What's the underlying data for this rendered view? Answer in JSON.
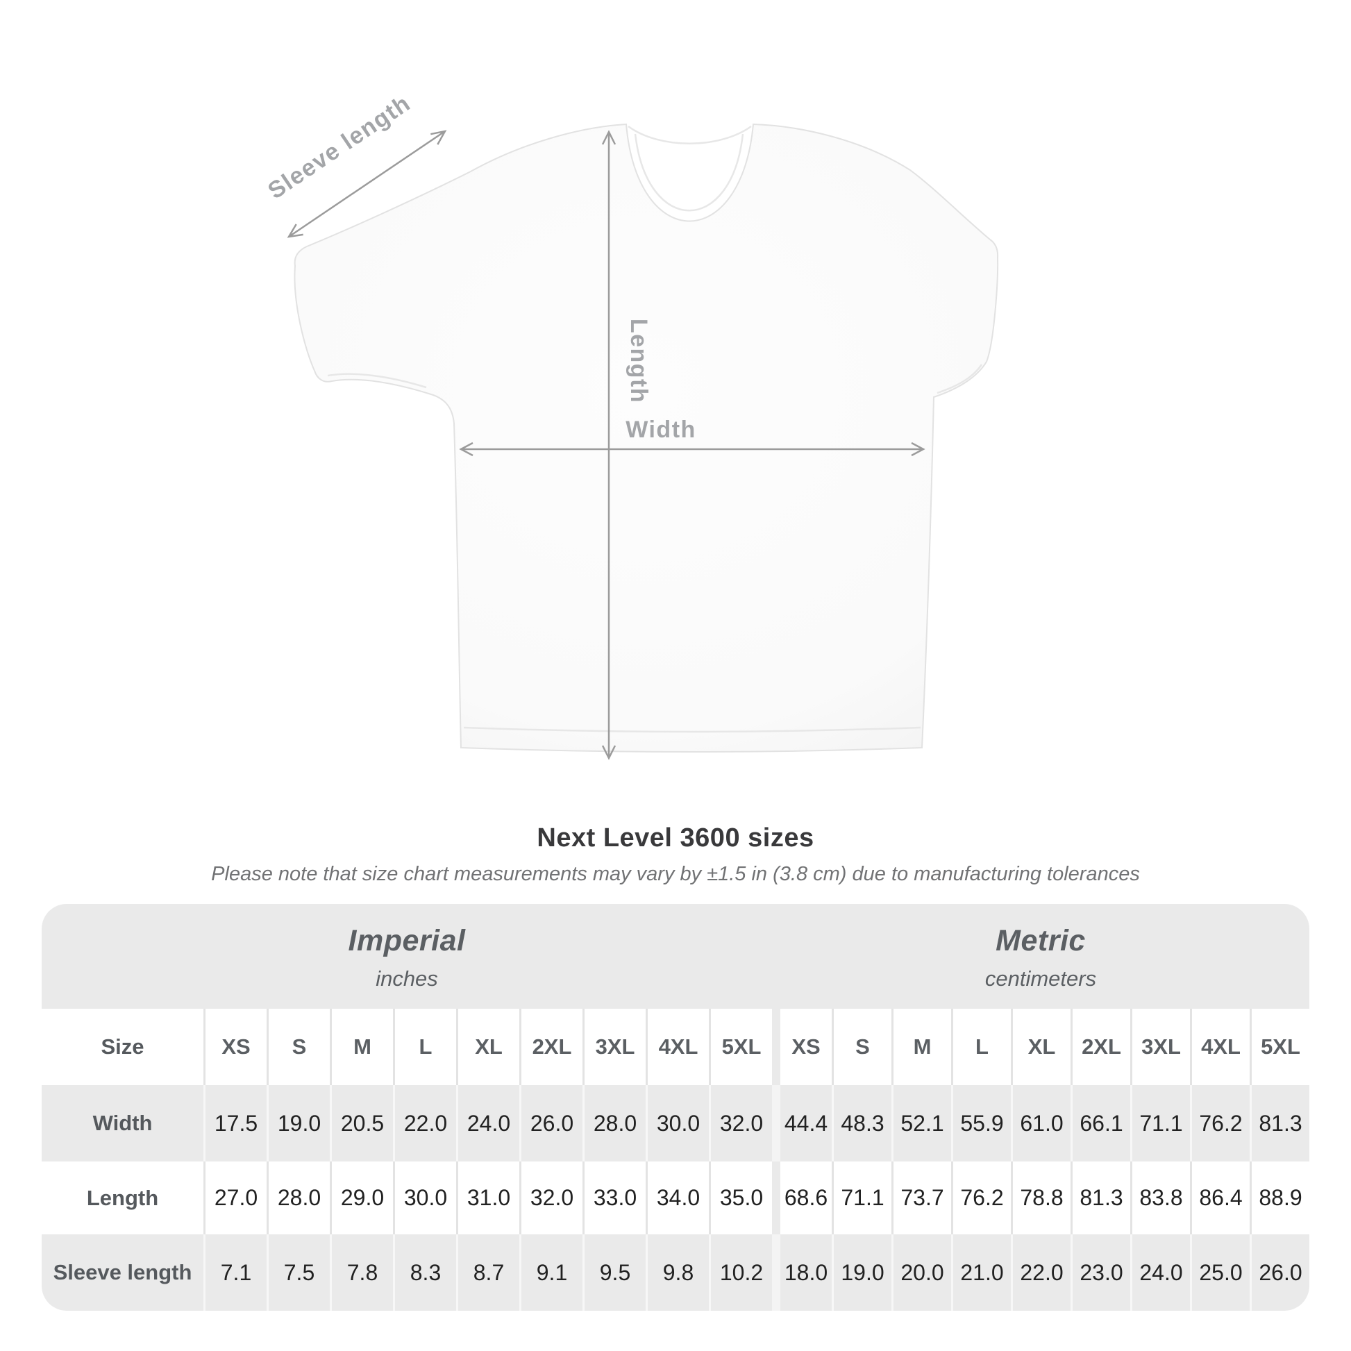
{
  "diagram": {
    "sleeve_label": "Sleeve length",
    "length_label": "Length",
    "width_label": "Width"
  },
  "title": "Next Level 3600 sizes",
  "subtitle": "Please note that size chart measurements may vary by ±1.5 in (3.8 cm) due to manufacturing tolerances",
  "table": {
    "size_label": "Size",
    "groups": [
      {
        "label": "Imperial",
        "unit": "inches"
      },
      {
        "label": "Metric",
        "unit": "centimeters"
      }
    ],
    "columns": [
      "XS",
      "S",
      "M",
      "L",
      "XL",
      "2XL",
      "3XL",
      "4XL",
      "5XL",
      "XS",
      "S",
      "M",
      "L",
      "XL",
      "2XL",
      "3XL",
      "4XL",
      "5XL"
    ],
    "rows": [
      {
        "label": "Width",
        "values": [
          "17.5",
          "19.0",
          "20.5",
          "22.0",
          "24.0",
          "26.0",
          "28.0",
          "30.0",
          "32.0",
          "44.4",
          "48.3",
          "52.1",
          "55.9",
          "61.0",
          "66.1",
          "71.1",
          "76.2",
          "81.3"
        ]
      },
      {
        "label": "Length",
        "values": [
          "27.0",
          "28.0",
          "29.0",
          "30.0",
          "31.0",
          "32.0",
          "33.0",
          "34.0",
          "35.0",
          "68.6",
          "71.1",
          "73.7",
          "76.2",
          "78.8",
          "81.3",
          "83.8",
          "86.4",
          "88.9"
        ]
      },
      {
        "label": "Sleeve length",
        "values": [
          "7.1",
          "7.5",
          "7.8",
          "8.3",
          "8.7",
          "9.1",
          "9.5",
          "9.8",
          "10.2",
          "18.0",
          "19.0",
          "20.0",
          "21.0",
          "22.0",
          "23.0",
          "24.0",
          "25.0",
          "26.0"
        ]
      }
    ]
  },
  "chart_data": {
    "type": "table",
    "title": "Next Level 3600 sizes",
    "note": "Please note that size chart measurements may vary by ±1.5 in (3.8 cm) due to manufacturing tolerances",
    "sizes": [
      "XS",
      "S",
      "M",
      "L",
      "XL",
      "2XL",
      "3XL",
      "4XL",
      "5XL"
    ],
    "column_groups": [
      {
        "label": "Imperial",
        "unit": "inches"
      },
      {
        "label": "Metric",
        "unit": "centimeters"
      }
    ],
    "rows": [
      {
        "measurement": "Width",
        "imperial_in": [
          17.5,
          19.0,
          20.5,
          22.0,
          24.0,
          26.0,
          28.0,
          30.0,
          32.0
        ],
        "metric_cm": [
          44.4,
          48.3,
          52.1,
          55.9,
          61.0,
          66.1,
          71.1,
          76.2,
          81.3
        ]
      },
      {
        "measurement": "Length",
        "imperial_in": [
          27.0,
          28.0,
          29.0,
          30.0,
          31.0,
          32.0,
          33.0,
          34.0,
          35.0
        ],
        "metric_cm": [
          68.6,
          71.1,
          73.7,
          76.2,
          78.8,
          81.3,
          83.8,
          86.4,
          88.9
        ]
      },
      {
        "measurement": "Sleeve length",
        "imperial_in": [
          7.1,
          7.5,
          7.8,
          8.3,
          8.7,
          9.1,
          9.5,
          9.8,
          10.2
        ],
        "metric_cm": [
          18.0,
          19.0,
          20.0,
          21.0,
          22.0,
          23.0,
          24.0,
          25.0,
          26.0
        ]
      }
    ]
  },
  "colors": {
    "band_gray": "#eaeaea",
    "separator_on_white": "#e3e3e3",
    "separator_on_gray": "#f7f7f7",
    "header_text": "#5b5f63",
    "number_text": "#212121",
    "title_text": "#39393b",
    "subtitle_text": "#717274",
    "diagram_label": "#a3a5a8",
    "arrow": "#9b9b9b",
    "shirt_outline": "#e2e2e2"
  }
}
